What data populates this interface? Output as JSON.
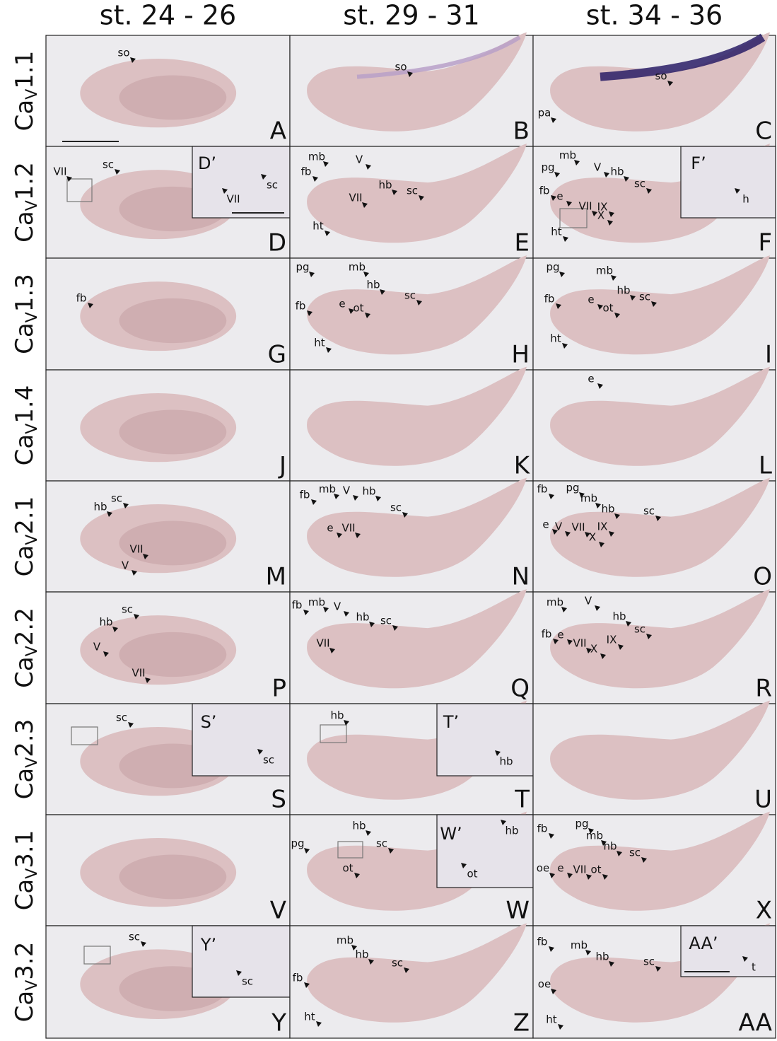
{
  "columns": [
    "st. 24 - 26",
    "st. 29 - 31",
    "st. 34 - 36"
  ],
  "rows": [
    {
      "label": {
        "main": "Ca",
        "sub": "V",
        "rest": "1.1"
      },
      "panels": [
        {
          "letter": "A",
          "annotations": [
            "so"
          ]
        },
        {
          "letter": "B",
          "annotations": [
            "so"
          ]
        },
        {
          "letter": "C",
          "annotations": [
            "so",
            "pa"
          ]
        }
      ]
    },
    {
      "label": {
        "main": "Ca",
        "sub": "V",
        "rest": "1.2"
      },
      "panels": [
        {
          "letter": "D",
          "annotations": [
            "VII",
            "sc"
          ],
          "inset": {
            "label": "D’",
            "annotations": [
              "VII",
              "sc"
            ]
          }
        },
        {
          "letter": "E",
          "annotations": [
            "mb",
            "V",
            "fb",
            "hb",
            "VII",
            "sc",
            "ht"
          ]
        },
        {
          "letter": "F",
          "annotations": [
            "pg",
            "mb",
            "V",
            "hb",
            "sc",
            "fb",
            "e",
            "VII",
            "IX",
            "X",
            "ht"
          ],
          "inset": {
            "label": "F’",
            "annotations": [
              "h"
            ]
          }
        }
      ]
    },
    {
      "label": {
        "main": "Ca",
        "sub": "V",
        "rest": "1.3"
      },
      "panels": [
        {
          "letter": "G",
          "annotations": [
            "fb"
          ]
        },
        {
          "letter": "H",
          "annotations": [
            "pg",
            "mb",
            "hb",
            "fb",
            "e",
            "ot",
            "sc",
            "ht"
          ]
        },
        {
          "letter": "I",
          "annotations": [
            "pg",
            "mb",
            "fb",
            "hb",
            "sc",
            "e",
            "ot",
            "ht"
          ]
        }
      ]
    },
    {
      "label": {
        "main": "Ca",
        "sub": "V",
        "rest": "1.4"
      },
      "panels": [
        {
          "letter": "J",
          "annotations": []
        },
        {
          "letter": "K",
          "annotations": []
        },
        {
          "letter": "L",
          "annotations": [
            "e"
          ]
        }
      ]
    },
    {
      "label": {
        "main": "Ca",
        "sub": "V",
        "rest": "2.1"
      },
      "panels": [
        {
          "letter": "M",
          "annotations": [
            "sc",
            "hb",
            "VII",
            "V"
          ]
        },
        {
          "letter": "N",
          "annotations": [
            "fb",
            "mb",
            "V",
            "hb",
            "sc",
            "e",
            "VII"
          ]
        },
        {
          "letter": "O",
          "annotations": [
            "fb",
            "pg",
            "mb",
            "hb",
            "sc",
            "e",
            "V",
            "VII",
            "IX",
            "X"
          ]
        }
      ]
    },
    {
      "label": {
        "main": "Ca",
        "sub": "V",
        "rest": "2.2"
      },
      "panels": [
        {
          "letter": "P",
          "annotations": [
            "sc",
            "hb",
            "V",
            "VII"
          ]
        },
        {
          "letter": "Q",
          "annotations": [
            "fb",
            "mb",
            "V",
            "hb",
            "sc",
            "VII"
          ]
        },
        {
          "letter": "R",
          "annotations": [
            "mb",
            "V",
            "hb",
            "sc",
            "fb",
            "e",
            "VII",
            "IX",
            "X"
          ]
        }
      ]
    },
    {
      "label": {
        "main": "Ca",
        "sub": "V",
        "rest": "2.3"
      },
      "panels": [
        {
          "letter": "S",
          "annotations": [
            "sc"
          ],
          "inset": {
            "label": "S’",
            "annotations": [
              "sc"
            ]
          }
        },
        {
          "letter": "T",
          "annotations": [
            "hb"
          ],
          "inset": {
            "label": "T’",
            "annotations": [
              "hb"
            ]
          }
        },
        {
          "letter": "U",
          "annotations": []
        }
      ]
    },
    {
      "label": {
        "main": "Ca",
        "sub": "V",
        "rest": "3.1"
      },
      "panels": [
        {
          "letter": "V",
          "annotations": []
        },
        {
          "letter": "W",
          "annotations": [
            "pg",
            "hb",
            "sc",
            "ot"
          ],
          "inset": {
            "label": "W’",
            "annotations": [
              "hb",
              "ot"
            ]
          }
        },
        {
          "letter": "X",
          "annotations": [
            "fb",
            "pg",
            "mb",
            "hb",
            "sc",
            "oe",
            "e",
            "VII",
            "ot"
          ]
        }
      ]
    },
    {
      "label": {
        "main": "Ca",
        "sub": "V",
        "rest": "3.2"
      },
      "panels": [
        {
          "letter": "Y",
          "annotations": [
            "sc"
          ],
          "inset": {
            "label": "Y’",
            "annotations": [
              "sc"
            ]
          }
        },
        {
          "letter": "Z",
          "annotations": [
            "mb",
            "hb",
            "sc",
            "fb",
            "ht"
          ]
        },
        {
          "letter": "AA",
          "annotations": [
            "fb",
            "mb",
            "hb",
            "sc",
            "oe",
            "ht"
          ],
          "inset": {
            "label": "AA’",
            "annotations": [
              "t"
            ]
          }
        }
      ]
    }
  ]
}
